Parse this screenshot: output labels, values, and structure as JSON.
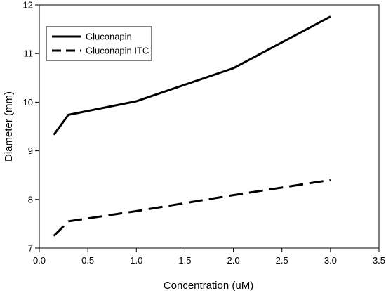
{
  "chart_data": {
    "type": "line",
    "title": "",
    "xlabel": "Concentration (uM)",
    "ylabel": "Diameter (mm)",
    "xlim": [
      0.0,
      3.5
    ],
    "ylim": [
      7,
      12
    ],
    "x_ticks": [
      "0.0",
      "0.5",
      "1.0",
      "1.5",
      "2.0",
      "2.5",
      "3.0",
      "3.5"
    ],
    "y_ticks": [
      "7",
      "8",
      "9",
      "10",
      "11",
      "12"
    ],
    "grid": false,
    "legend_position": "top-left",
    "series": [
      {
        "name": "Gluconapin",
        "style": "solid",
        "color": "#000000",
        "x": [
          0.15,
          0.3,
          1.0,
          2.0,
          3.0
        ],
        "y": [
          9.33,
          9.74,
          10.02,
          10.7,
          11.76
        ]
      },
      {
        "name": "Gluconapin ITC",
        "style": "dashed",
        "color": "#000000",
        "x": [
          0.15,
          0.3,
          1.0,
          2.0,
          3.0
        ],
        "y": [
          7.25,
          7.55,
          7.76,
          8.09,
          8.4
        ]
      }
    ]
  }
}
